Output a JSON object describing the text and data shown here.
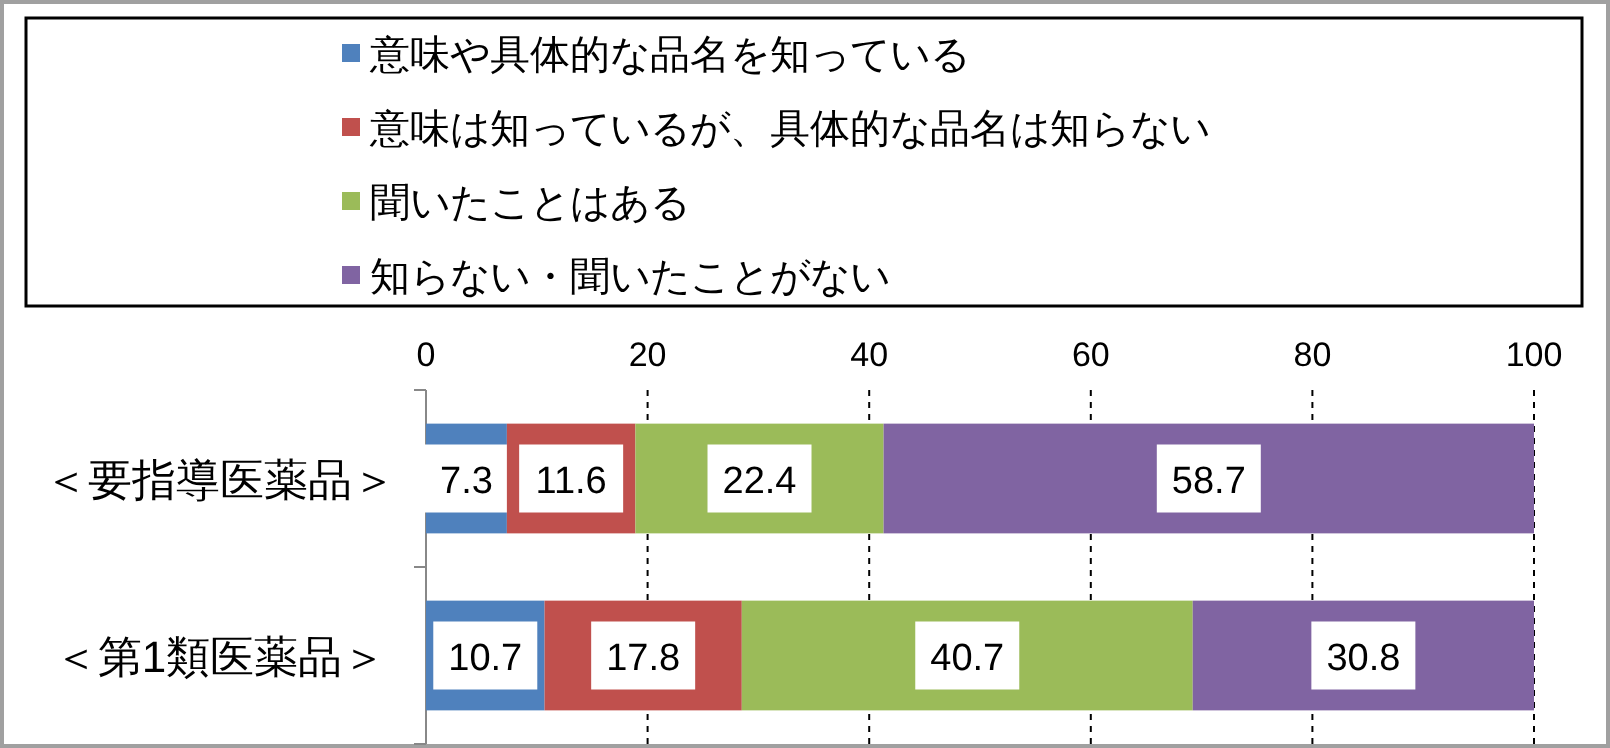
{
  "chart_data": {
    "type": "bar",
    "orientation": "horizontal",
    "stacked": true,
    "categories": [
      "＜要指導医薬品＞",
      "＜第1類医薬品＞"
    ],
    "series": [
      {
        "name": "意味や具体的な品名を知っている",
        "color": "#4f81bd",
        "values": [
          7.3,
          10.7
        ]
      },
      {
        "name": "意味は知っているが、具体的な品名は知らない",
        "color": "#c0504d",
        "values": [
          11.6,
          17.8
        ]
      },
      {
        "name": "聞いたことはある",
        "color": "#9bbb59",
        "values": [
          22.4,
          40.7
        ]
      },
      {
        "name": "知らない・聞いたことがない",
        "color": "#8064a2",
        "values": [
          58.7,
          30.8
        ]
      }
    ],
    "xlim": [
      0,
      100
    ],
    "xticks": [
      0,
      20,
      40,
      60,
      80,
      100
    ],
    "grid": "x",
    "legend": "top",
    "data_labels": true
  }
}
